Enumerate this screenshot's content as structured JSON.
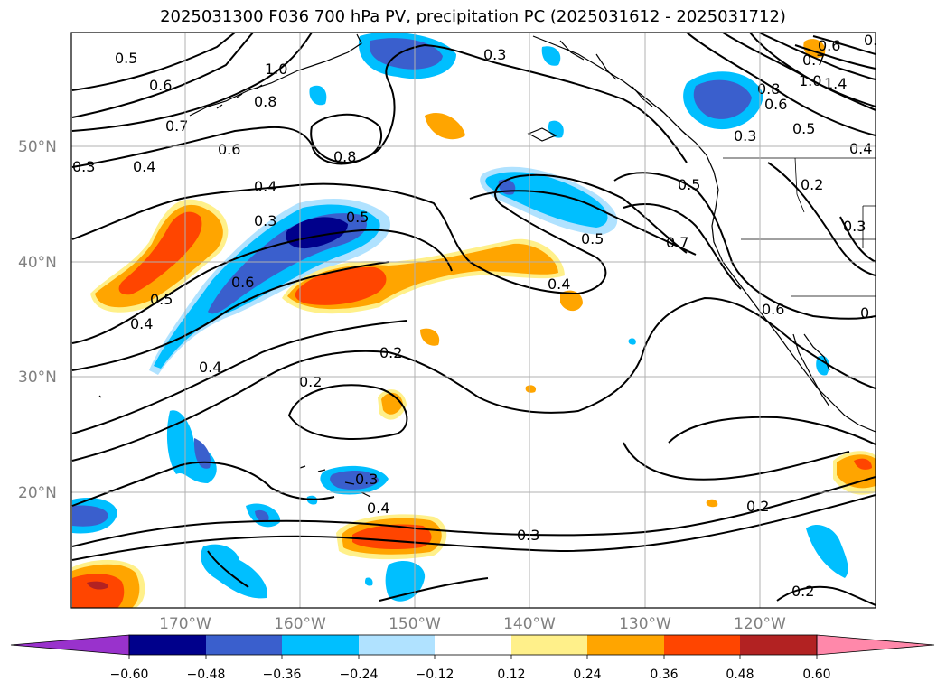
{
  "title": "2025031300 F036 700 hPa PV, precipitation PC (2025031612 - 2025031712)",
  "lat_labels": [
    "20°N",
    "30°N",
    "40°N",
    "50°N"
  ],
  "lon_labels": [
    "170°W",
    "160°W",
    "150°W",
    "140°W",
    "130°W",
    "120°W"
  ],
  "contour_labels": [
    "0.5",
    "0.6",
    "1.0",
    "0.8",
    "0.7",
    "0.3",
    "0.4",
    "0.6",
    "0.8",
    "0.4",
    "0.3",
    "0.5",
    "0.6",
    "0.5",
    "0.4",
    "0.4",
    "0.2",
    "0.2",
    "0.3",
    "0.4",
    "0.3",
    "0.4",
    "0.5",
    "0.5",
    "0.7",
    "0.6",
    "0.8",
    "0.6",
    "0.3",
    "0.5",
    "0.6",
    "0.7",
    "1.0",
    "1.4",
    "0.4",
    "0.3",
    "0.2",
    "0.3",
    "0.2",
    "0.2",
    "0.6",
    "0.5"
  ],
  "colorbar": {
    "ticks": [
      "−0.60",
      "−0.48",
      "−0.36",
      "−0.24",
      "−0.12",
      "0.12",
      "0.24",
      "0.36",
      "0.48",
      "0.60"
    ],
    "colors": [
      "#9932cc",
      "#00008b",
      "#3a5fcd",
      "#00bfff",
      "#b0e2ff",
      "#ffffff",
      "#fff08a",
      "#ffa500",
      "#ff4500",
      "#b22222",
      "#ff88aa"
    ]
  }
}
